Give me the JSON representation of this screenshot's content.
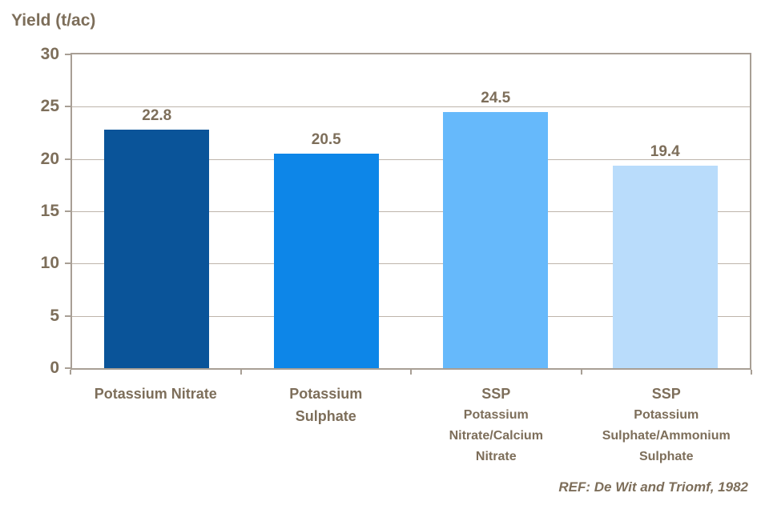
{
  "chart_data": {
    "type": "bar",
    "title": "Yield (t/ac)",
    "ylabel": "Yield (t/ac)",
    "xlabel": "",
    "categories": [
      {
        "label": "Potassium Nitrate",
        "sublabel": ""
      },
      {
        "label": "Potassium\nSulphate",
        "sublabel": ""
      },
      {
        "label": "SSP",
        "sublabel": "Potassium\nNitrate/Calcium\nNitrate"
      },
      {
        "label": "SSP",
        "sublabel": "Potassium\nSulphate/Ammonium\nSulphate"
      }
    ],
    "values": [
      22.8,
      20.5,
      24.5,
      19.4
    ],
    "bar_colors": [
      "#0a5499",
      "#0d86e8",
      "#66b9fb",
      "#b9dcfb"
    ],
    "ylim": [
      0,
      30
    ],
    "yticks": [
      0,
      5,
      10,
      15,
      20,
      25,
      30
    ],
    "grid": true,
    "legend_position": "none",
    "footnote": "REF: De Wit and Triomf, 1982"
  },
  "colors": {
    "background": "#ffffff",
    "text": "#7d6e5a",
    "axis": "#a89f95",
    "gridline": "#beb5ab"
  }
}
